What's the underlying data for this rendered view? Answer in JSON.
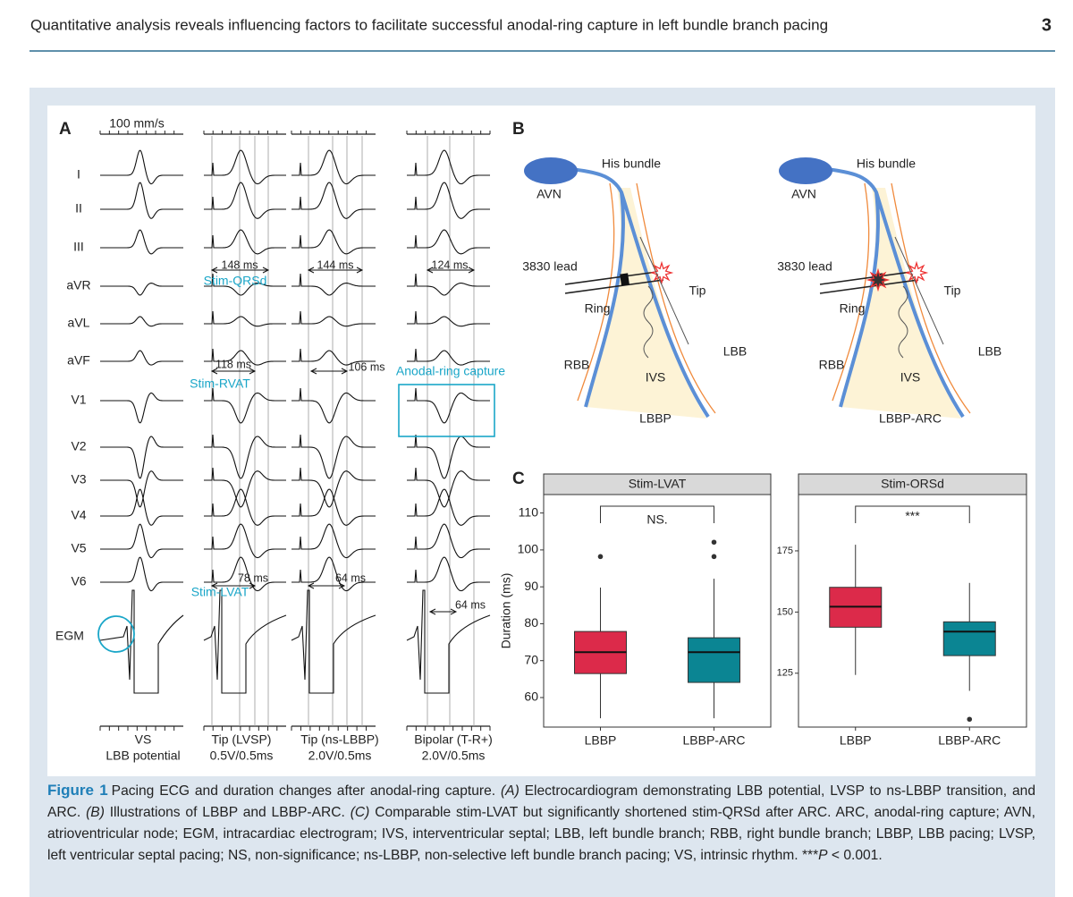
{
  "header": {
    "title": "Quantitative analysis reveals influencing factors to facilitate successful anodal-ring capture in left bundle branch pacing",
    "page_number": "3"
  },
  "panel_a": {
    "label": "A",
    "scale": "100 mm/s",
    "leads": [
      "I",
      "II",
      "III",
      "aVR",
      "aVL",
      "aVF",
      "V1",
      "V2",
      "V3",
      "V4",
      "V5",
      "V6",
      "EGM"
    ],
    "measurements": [
      "148 ms",
      "144 ms",
      "124 ms",
      "118 ms",
      "106 ms",
      "78 ms",
      "64 ms",
      "64 ms"
    ],
    "annotations": [
      "Stim-QRSd",
      "Stim-RVAT",
      "Anodal-ring capture",
      "Stim-LVAT"
    ],
    "columns": [
      {
        "name": "VS",
        "setting": "LBB potential"
      },
      {
        "name": "Tip (LVSP)",
        "setting": "0.5V/0.5ms"
      },
      {
        "name": "Tip (ns-LBBP)",
        "setting": "2.0V/0.5ms"
      },
      {
        "name": "Bipolar (T-R+)",
        "setting": "2.0V/0.5ms"
      }
    ]
  },
  "panel_b": {
    "label": "B",
    "diagrams": [
      {
        "his": "His bundle",
        "avn": "AVN",
        "lead": "3830 lead",
        "ring": "Ring",
        "tip": "Tip",
        "rbb": "RBB",
        "lbb": "LBB",
        "ivs": "IVS",
        "caption": "LBBP"
      },
      {
        "his": "His bundle",
        "avn": "AVN",
        "lead": "3830 lead",
        "ring": "Ring",
        "tip": "Tip",
        "rbb": "RBB",
        "lbb": "LBB",
        "ivs": "IVS",
        "caption": "LBBP-ARC"
      }
    ]
  },
  "panel_c": {
    "label": "C"
  },
  "chart_data": [
    {
      "type": "box",
      "title": "Stim-LVAT",
      "y_label": "Duration (ms)",
      "annotation": "NS.",
      "categories": [
        "LBBP",
        "LBBP-ARC"
      ],
      "colors": [
        "#dc2a4a",
        "#0b8593"
      ],
      "boxes": [
        {
          "low": 54.4,
          "q1": 66.5,
          "median": 72.3,
          "q3": 77.9,
          "high": 89.8,
          "outliers": [
            98.2
          ]
        },
        {
          "low": 54.4,
          "q1": 64.1,
          "median": 72.3,
          "q3": 76.2,
          "high": 92.2,
          "outliers": [
            102.1,
            98.2
          ]
        }
      ],
      "ylim": [
        52,
        115
      ],
      "yticks": [
        60,
        70,
        80,
        90,
        100,
        110
      ]
    },
    {
      "type": "box",
      "title": "Stim-ORSd",
      "annotation": "***",
      "categories": [
        "LBBP",
        "LBBP-ARC"
      ],
      "colors": [
        "#dc2a4a",
        "#0b8593"
      ],
      "boxes": [
        {
          "low": 124.3,
          "q1": 143.8,
          "median": 152.2,
          "q3": 160.1,
          "high": 177.5,
          "outliers": []
        },
        {
          "low": 117.8,
          "q1": 132.2,
          "median": 142.0,
          "q3": 146.0,
          "high": 161.9,
          "outliers": [
            106.2
          ]
        }
      ],
      "ylim": [
        103,
        198
      ],
      "yticks": [
        125,
        150,
        175
      ]
    }
  ],
  "caption": {
    "label": "Figure 1",
    "runs": [
      {
        "text": "Pacing ECG and duration changes after anodal-ring capture. "
      },
      {
        "text": "(A)",
        "italic": true
      },
      {
        "text": " Electrocardiogram demonstrating LBB potential, LVSP to ns-LBBP transition, and ARC. "
      },
      {
        "text": "(B)",
        "italic": true
      },
      {
        "text": " Illustrations of LBBP and LBBP-ARC. "
      },
      {
        "text": "(C)",
        "italic": true
      },
      {
        "text": " Comparable stim-LVAT but significantly shortened stim-QRSd after ARC. ARC, anodal-ring capture; AVN, atrioventricular node; EGM, intracardiac electrogram; IVS, interventricular septal; LBB, left bundle branch; RBB, right bundle branch; LBBP, LBB pacing; LVSP, left ventricular septal pacing; NS, non-significance; ns-LBBP, non-selective left bundle branch pacing; VS, intrinsic rhythm. ***"
      },
      {
        "text": "P",
        "italic": true
      },
      {
        "text": " < 0.001."
      }
    ]
  }
}
